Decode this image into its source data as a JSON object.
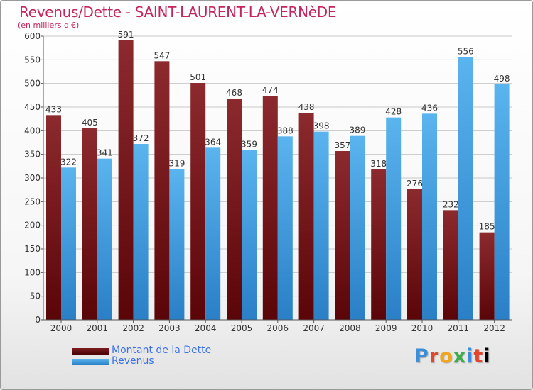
{
  "title": "Revenus/Dette - SAINT-LAURENT-LA-VERNèDE",
  "unit_label": "(en milliers d'€)",
  "logo": {
    "text": "Proxiti",
    "letters": [
      "P",
      "r",
      "o",
      "x",
      "i",
      "t",
      "i"
    ]
  },
  "colors": {
    "title": "#c4255d",
    "dette": "#7b1c1e",
    "revenus": "#3fa3e8",
    "legend_text": "#3d73e6"
  },
  "chart_data": {
    "type": "bar",
    "title": "Revenus/Dette - SAINT-LAURENT-LA-VERNèDE",
    "ylabel": "(en milliers d'€)",
    "xlabel": "",
    "categories": [
      "2000",
      "2001",
      "2002",
      "2003",
      "2004",
      "2005",
      "2006",
      "2007",
      "2008",
      "2009",
      "2010",
      "2011",
      "2012"
    ],
    "series": [
      {
        "name": "Montant de la Dette",
        "values": [
          433,
          405,
          591,
          547,
          501,
          468,
          474,
          438,
          357,
          318,
          276,
          232,
          185
        ]
      },
      {
        "name": "Revenus",
        "values": [
          322,
          341,
          372,
          319,
          364,
          359,
          388,
          398,
          389,
          428,
          436,
          556,
          498
        ]
      }
    ],
    "ylim": [
      0,
      600
    ],
    "yticks": [
      0,
      50,
      100,
      150,
      200,
      250,
      300,
      350,
      400,
      450,
      500,
      550,
      600
    ],
    "grid": true,
    "legend_position": "bottom-left"
  }
}
